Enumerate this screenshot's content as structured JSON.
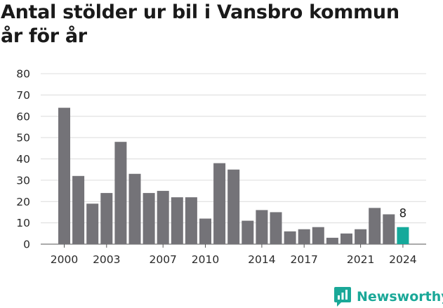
{
  "title_line1": "Antal stölder ur bil i Vansbro kommun",
  "title_line2": "år för år",
  "brand": {
    "name": "Newsworthy"
  },
  "colors": {
    "bar": "#747378",
    "highlight": "#15a99b",
    "grid": "#dcdcdc",
    "text": "#2a2a2a"
  },
  "chart_data": {
    "type": "bar",
    "categories": [
      "2000",
      "2001",
      "2002",
      "2003",
      "2004",
      "2005",
      "2006",
      "2007",
      "2008",
      "2009",
      "2010",
      "2011",
      "2012",
      "2013",
      "2014",
      "2015",
      "2016",
      "2017",
      "2018",
      "2019",
      "2020",
      "2021",
      "2022",
      "2023",
      "2024"
    ],
    "values": [
      64,
      32,
      19,
      24,
      48,
      33,
      24,
      25,
      22,
      22,
      12,
      38,
      35,
      11,
      16,
      15,
      6,
      7,
      8,
      3,
      5,
      7,
      17,
      14,
      8
    ],
    "x_tick_labels": [
      "2000",
      "2003",
      "2007",
      "2010",
      "2014",
      "2017",
      "2021",
      "2024"
    ],
    "y_ticks": [
      0,
      10,
      20,
      30,
      40,
      50,
      60,
      70,
      80
    ],
    "ylim": [
      0,
      80
    ],
    "grid": true,
    "highlight_category": "2024",
    "highlight_label": "8"
  }
}
